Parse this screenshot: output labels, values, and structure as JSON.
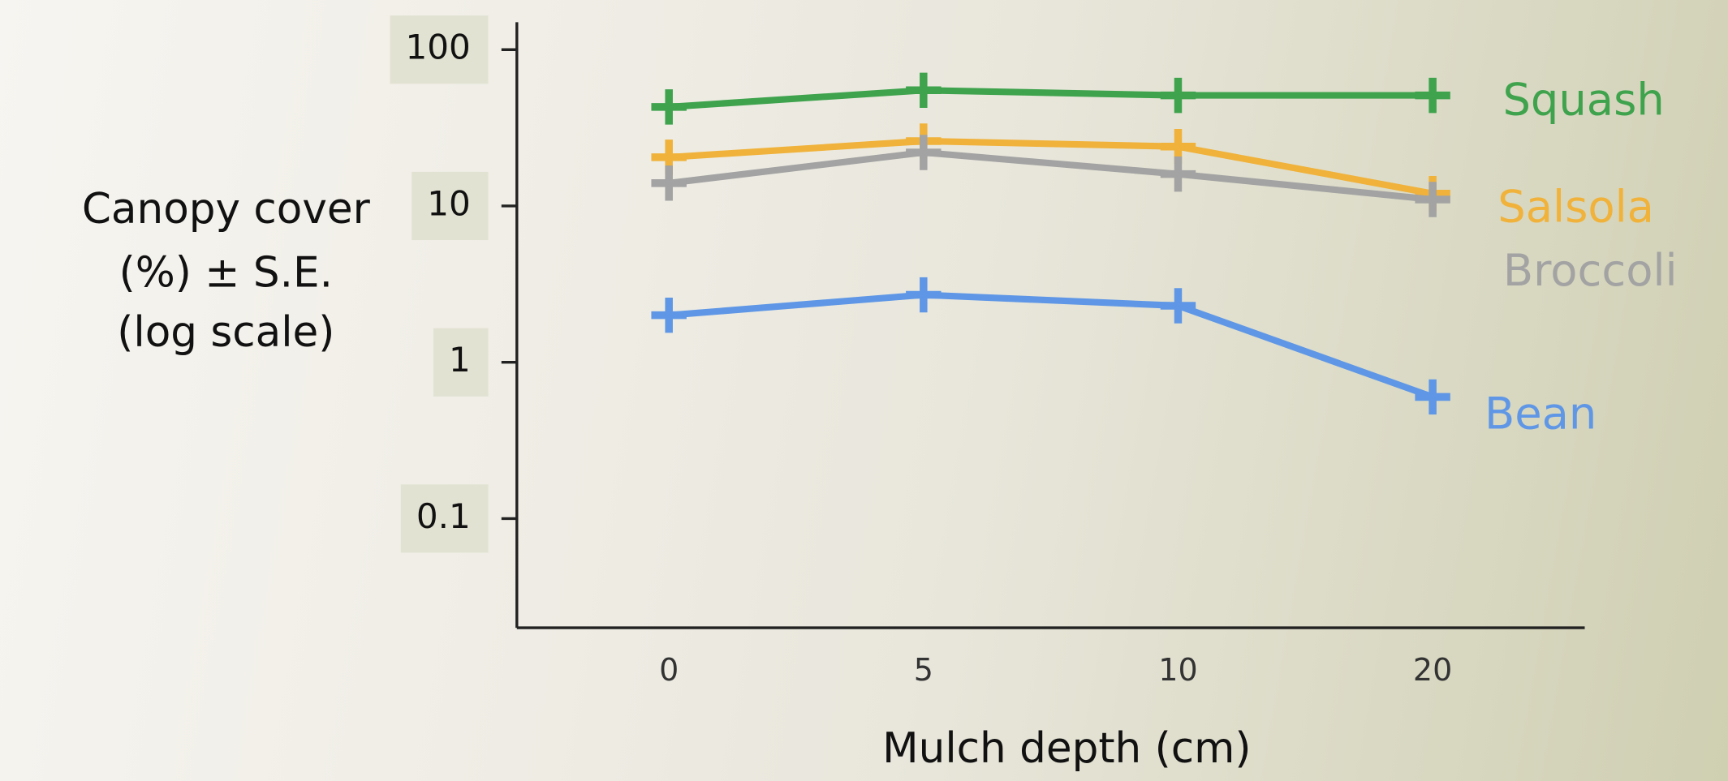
{
  "chart_data": {
    "type": "line",
    "ylabel": [
      "Canopy cover",
      "(%) ± S.E.",
      "(log scale)"
    ],
    "xlabel": "Mulch depth (cm)",
    "categories": [
      "0",
      "5",
      "10",
      "20"
    ],
    "series": [
      {
        "name": "Squash",
        "color": "#3fa34d",
        "values": [
          43,
          55,
          51,
          51
        ]
      },
      {
        "name": "Salsola",
        "color": "#f0b23a",
        "values": [
          20.5,
          26,
          24,
          12
        ]
      },
      {
        "name": "Broccoli",
        "color": "#a3a3a3",
        "values": [
          14,
          22,
          16,
          11
        ]
      },
      {
        "name": "Bean",
        "color": "#5f97e6",
        "values": [
          2,
          2.7,
          2.3,
          0.6
        ]
      }
    ],
    "log_y": true,
    "ylim": [
      0.02,
      150
    ],
    "yticks": [
      0.1,
      1,
      10,
      100
    ]
  }
}
